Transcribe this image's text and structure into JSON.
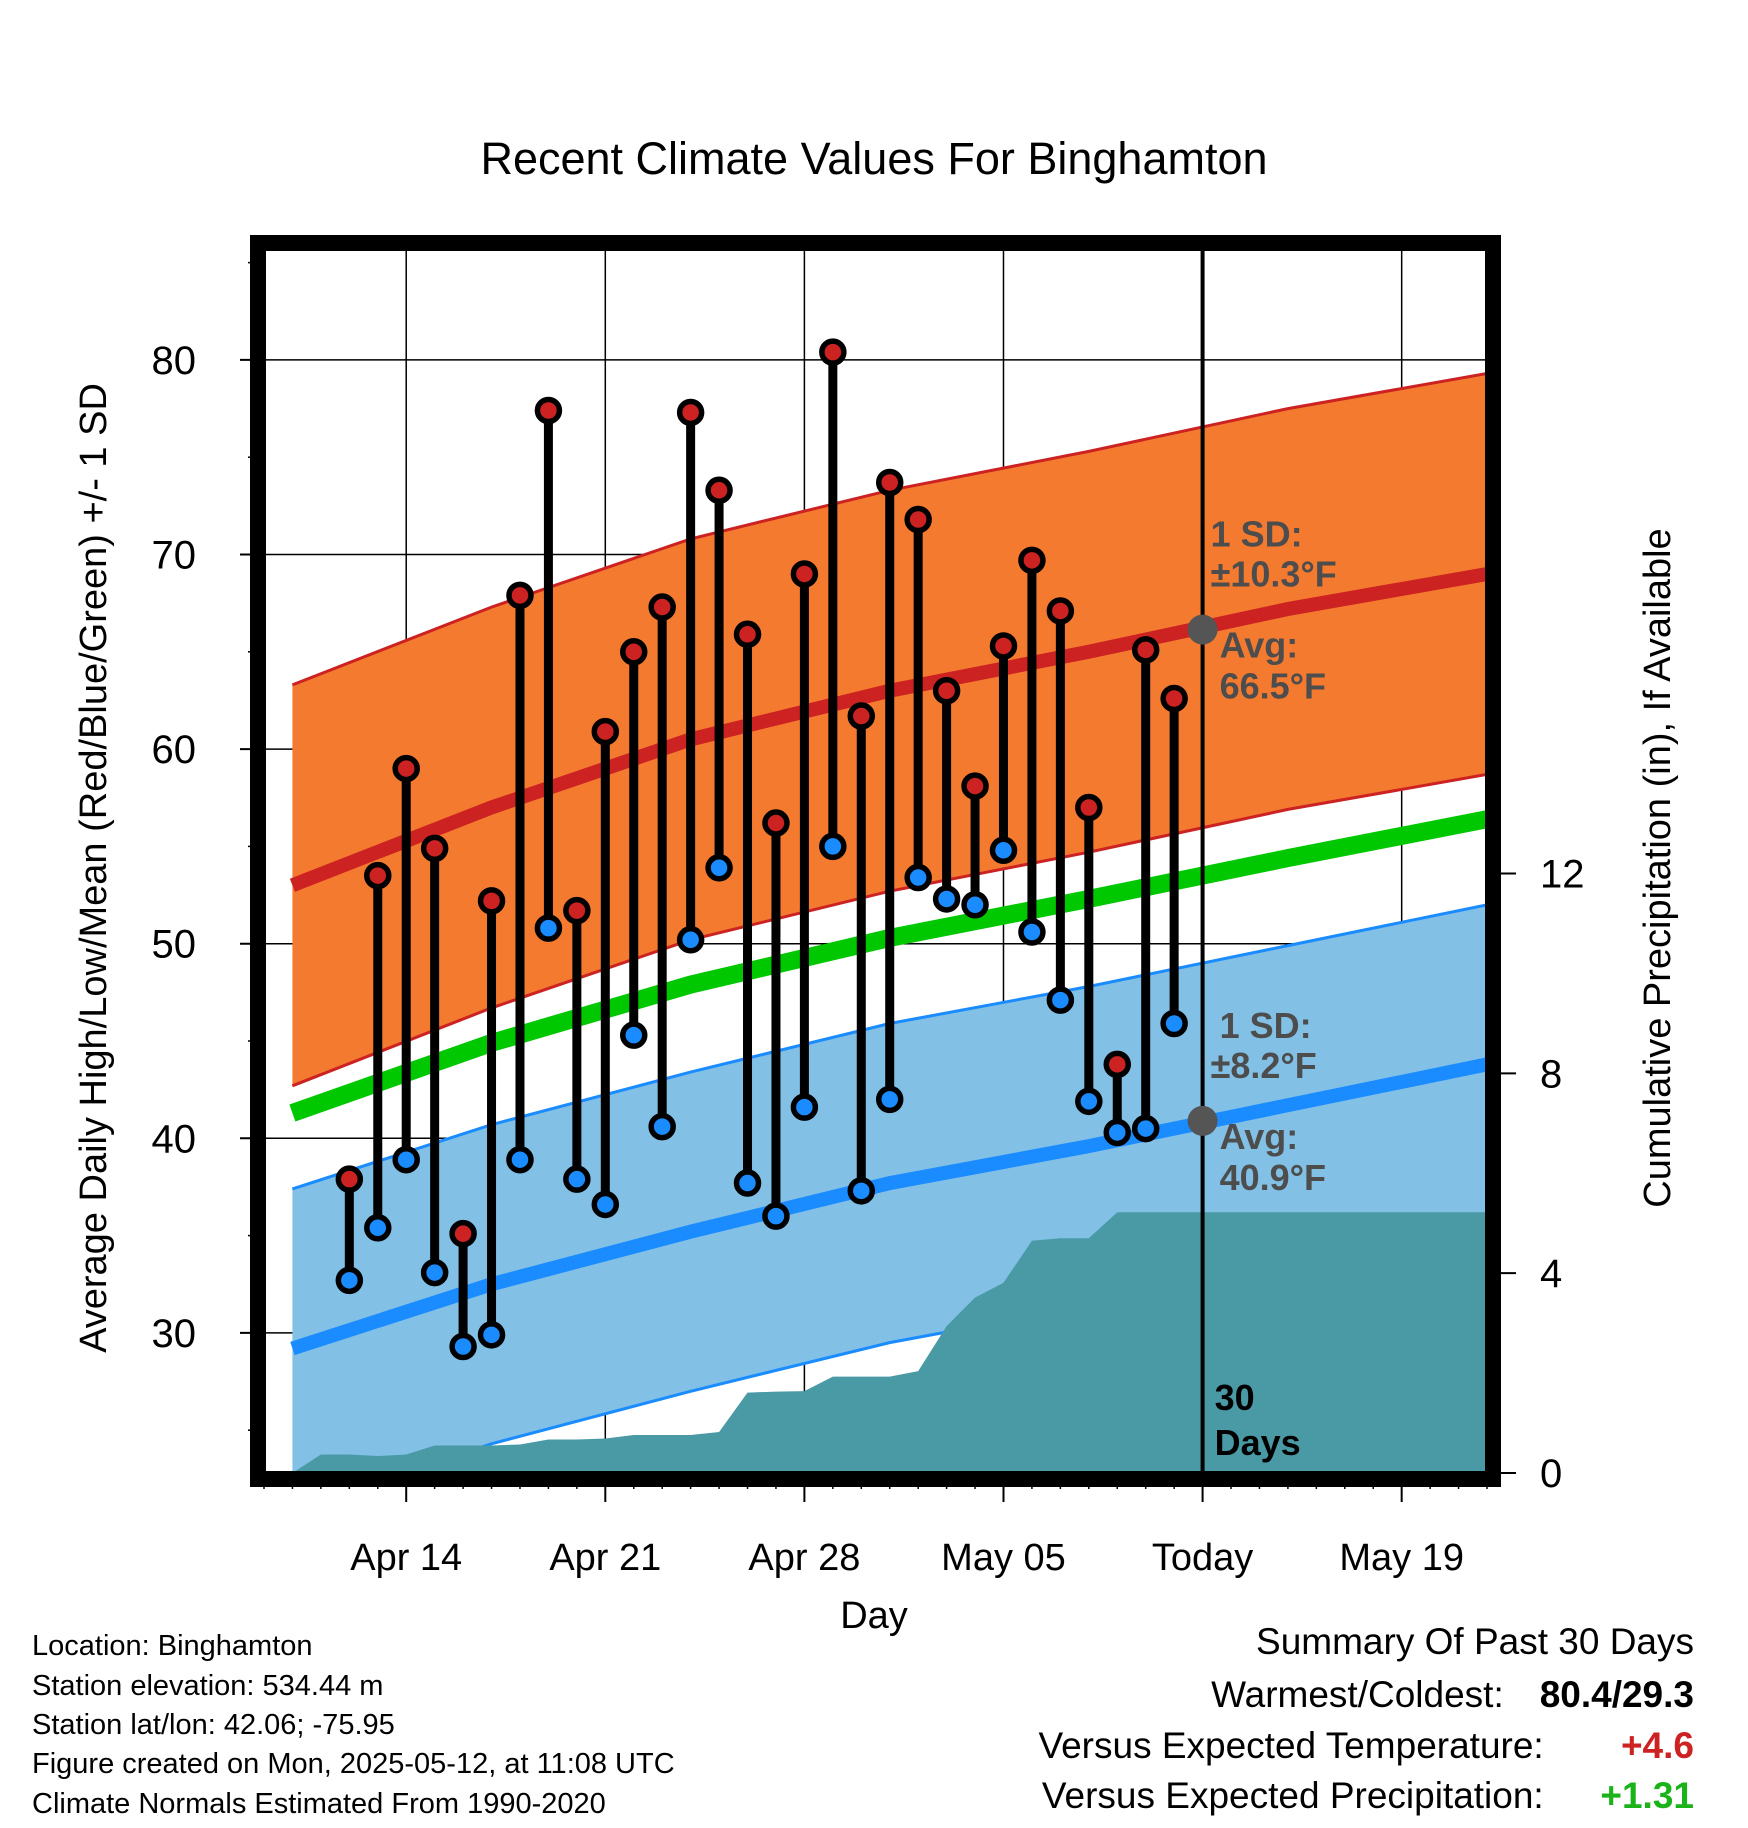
{
  "chart_data": {
    "type": "line",
    "title": "Recent Climate Values For Binghamton",
    "xlabel": "Day",
    "ylabel": "Average Daily High/Low/Mean (Red/Blue/Green) +/- 1 SD",
    "y2label": "Cumulative Precipitation (in), If Available",
    "ylim": [
      22.8,
      85.7
    ],
    "y2lim": [
      0,
      24.5
    ],
    "xlim": [
      "2025-04-09",
      "2025-05-22"
    ],
    "x_ticks": [
      "Apr 14",
      "Apr 21",
      "Apr 28",
      "May 05",
      "Today",
      "May 19"
    ],
    "x_tick_dates": [
      "2025-04-14",
      "2025-04-21",
      "2025-04-28",
      "2025-05-05",
      "2025-05-12",
      "2025-05-19"
    ],
    "y_ticks": [
      30,
      40,
      50,
      60,
      70,
      80
    ],
    "y2_ticks": [
      0,
      4,
      8,
      12
    ],
    "today": "2025-05-12",
    "today_label": "30 Days",
    "colors": {
      "high": "#cc2222",
      "high_band": "#f47a30",
      "low": "#1a8cff",
      "low_band": "#82c0e6",
      "mean": "#00c800",
      "precip": "#4a9aa6"
    },
    "normals": {
      "x": [
        "2025-04-10",
        "2025-04-17",
        "2025-04-24",
        "2025-05-01",
        "2025-05-08",
        "2025-05-15",
        "2025-05-22"
      ],
      "avg_high": [
        53.0,
        57.0,
        60.5,
        63.0,
        65.0,
        67.2,
        69.0
      ],
      "avg_low": [
        29.2,
        32.5,
        35.2,
        37.7,
        39.6,
        41.7,
        43.8
      ],
      "avg_mean": [
        41.3,
        44.9,
        47.9,
        50.3,
        52.3,
        54.4,
        56.4
      ],
      "sd_high": 10.3,
      "sd_low": 8.2
    },
    "today_marks": [
      {
        "label": "1 SD:",
        "value": "±10.3°F"
      },
      {
        "label": "Avg:",
        "value": "66.5°F"
      },
      {
        "label": "1 SD:",
        "value": "±8.2°F"
      },
      {
        "label": "Avg:",
        "value": "40.9°F"
      }
    ],
    "daily": {
      "x": [
        "2025-04-12",
        "2025-04-13",
        "2025-04-14",
        "2025-04-15",
        "2025-04-16",
        "2025-04-17",
        "2025-04-18",
        "2025-04-19",
        "2025-04-20",
        "2025-04-21",
        "2025-04-22",
        "2025-04-23",
        "2025-04-24",
        "2025-04-25",
        "2025-04-26",
        "2025-04-27",
        "2025-04-28",
        "2025-04-29",
        "2025-04-30",
        "2025-05-01",
        "2025-05-02",
        "2025-05-03",
        "2025-05-04",
        "2025-05-05",
        "2025-05-06",
        "2025-05-07",
        "2025-05-08",
        "2025-05-09",
        "2025-05-10",
        "2025-05-11"
      ],
      "high": [
        37.9,
        53.5,
        59.0,
        54.9,
        35.1,
        52.2,
        67.9,
        77.4,
        51.7,
        60.9,
        65.0,
        67.3,
        77.3,
        73.3,
        65.9,
        56.2,
        69.0,
        80.4,
        61.7,
        73.7,
        71.8,
        63.0,
        58.1,
        65.3,
        69.7,
        67.1,
        57.0,
        43.8,
        65.1,
        62.6
      ],
      "low": [
        32.7,
        35.4,
        38.9,
        33.1,
        29.3,
        29.9,
        38.9,
        50.8,
        37.9,
        36.6,
        45.3,
        40.6,
        50.2,
        53.9,
        37.7,
        36.0,
        41.6,
        55.0,
        37.3,
        42.0,
        53.4,
        52.3,
        52.0,
        54.8,
        50.6,
        47.1,
        41.9,
        40.3,
        40.5,
        45.9
      ]
    },
    "precip": {
      "x": [
        "2025-04-09",
        "2025-04-10",
        "2025-04-11",
        "2025-04-12",
        "2025-04-13",
        "2025-04-14",
        "2025-04-15",
        "2025-04-16",
        "2025-04-17",
        "2025-04-18",
        "2025-04-19",
        "2025-04-20",
        "2025-04-21",
        "2025-04-22",
        "2025-04-23",
        "2025-04-24",
        "2025-04-25",
        "2025-04-26",
        "2025-04-27",
        "2025-04-28",
        "2025-04-29",
        "2025-04-30",
        "2025-05-01",
        "2025-05-02",
        "2025-05-03",
        "2025-05-04",
        "2025-05-05",
        "2025-05-06",
        "2025-05-07",
        "2025-05-08",
        "2025-05-09",
        "2025-05-10",
        "2025-05-11",
        "2025-05-22"
      ],
      "values": [
        0.0,
        0.0,
        0.37,
        0.37,
        0.34,
        0.37,
        0.55,
        0.55,
        0.55,
        0.57,
        0.67,
        0.67,
        0.69,
        0.76,
        0.76,
        0.76,
        0.82,
        1.61,
        1.63,
        1.64,
        1.93,
        1.93,
        1.93,
        2.04,
        2.94,
        3.51,
        3.81,
        4.65,
        4.7,
        4.7,
        5.22,
        5.22,
        5.22,
        5.22
      ]
    }
  },
  "info": {
    "location": "Location: Binghamton",
    "elevation": "Station elevation: 534.44 m",
    "latlon": "Station lat/lon: 42.06; -75.95",
    "created": "Figure created on Mon, 2025-05-12, at 11:08 UTC",
    "normals": "Climate Normals Estimated From 1990-2020"
  },
  "summary": {
    "heading": "Summary Of Past 30 Days",
    "warm_cold_label": "Warmest/Coldest:",
    "warm_cold_value": "80.4/29.3",
    "temp_label": "Versus Expected Temperature:",
    "temp_value": "+4.6",
    "precip_label": "Versus Expected Precipitation:",
    "precip_value": "+1.31",
    "temp_color": "#cc2222",
    "precip_color": "#1ab31a"
  }
}
